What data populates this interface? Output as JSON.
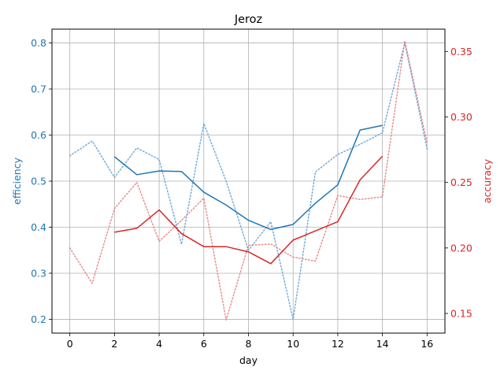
{
  "chart_data": {
    "type": "line",
    "title": "Jeroz",
    "xlabel": "day",
    "ylabel_left": "efficiency",
    "ylabel_right": "accuracy",
    "x": [
      0,
      1,
      2,
      3,
      4,
      5,
      6,
      7,
      8,
      9,
      10,
      11,
      12,
      13,
      14,
      15,
      16
    ],
    "xlim": [
      -0.8,
      16.8
    ],
    "xticks": [
      0,
      2,
      4,
      6,
      8,
      10,
      12,
      14,
      16
    ],
    "ylim_left": [
      0.17,
      0.83
    ],
    "yticks_left": [
      0.2,
      0.3,
      0.4,
      0.5,
      0.6,
      0.7,
      0.8
    ],
    "ylim_right": [
      0.135,
      0.367
    ],
    "yticks_right": [
      0.15,
      0.2,
      0.25,
      0.3,
      0.35
    ],
    "grid": true,
    "colors": {
      "left": "#1f77b4",
      "right": "#d62728",
      "left_raw": "#5a9fd4",
      "right_raw": "#e37a7a",
      "grid": "#b0b0b0"
    },
    "series": [
      {
        "axis": "left",
        "style": "dotted",
        "values": [
          0.555,
          0.587,
          0.508,
          0.572,
          0.547,
          0.363,
          0.625,
          0.5,
          0.35,
          0.412,
          0.2,
          0.52,
          0.558,
          0.58,
          0.605,
          0.8,
          0.57
        ]
      },
      {
        "axis": "left",
        "style": "solid",
        "values": [
          null,
          null,
          0.553,
          0.514,
          0.522,
          0.521,
          0.476,
          0.448,
          0.415,
          0.395,
          0.406,
          0.452,
          0.492,
          0.611,
          0.621,
          null,
          null
        ]
      },
      {
        "axis": "right",
        "style": "dotted",
        "values": [
          0.2,
          0.173,
          0.23,
          0.25,
          0.205,
          0.221,
          0.238,
          0.145,
          0.202,
          0.203,
          0.193,
          0.19,
          0.24,
          0.237,
          0.239,
          0.358,
          0.28
        ]
      },
      {
        "axis": "right",
        "style": "solid",
        "values": [
          null,
          null,
          0.212,
          0.215,
          0.229,
          0.211,
          0.201,
          0.201,
          0.197,
          0.188,
          0.206,
          0.213,
          0.22,
          0.252,
          0.27,
          null,
          null
        ]
      }
    ]
  }
}
